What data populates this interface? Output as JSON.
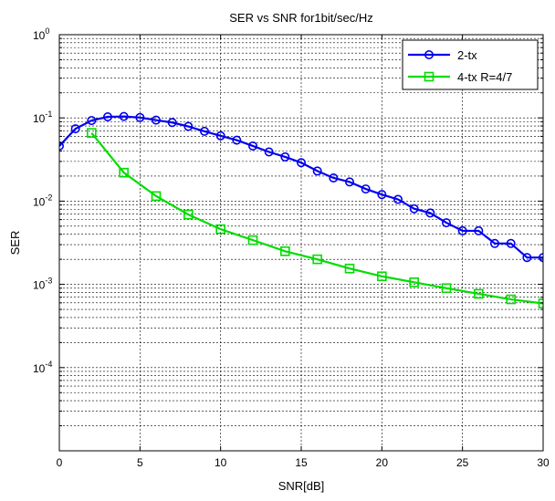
{
  "chart_data": {
    "type": "line",
    "title": "SER vs SNR for1bit/sec/Hz",
    "xlabel": "SNR[dB]",
    "ylabel": "SER",
    "xlim": [
      0,
      30
    ],
    "ylim": [
      1e-05,
      1
    ],
    "yscale": "log",
    "grid": true,
    "legend_position": "top-right",
    "x_ticks": [
      {
        "value": 0,
        "label": "0"
      },
      {
        "value": 5,
        "label": "5"
      },
      {
        "value": 10,
        "label": "10"
      },
      {
        "value": 15,
        "label": "15"
      },
      {
        "value": 20,
        "label": "20"
      },
      {
        "value": 25,
        "label": "25"
      },
      {
        "value": 30,
        "label": "30"
      }
    ],
    "y_ticks": [
      {
        "exp": 0,
        "base": "10",
        "sup": "0"
      },
      {
        "exp": -1,
        "base": "10",
        "sup": "-1"
      },
      {
        "exp": -2,
        "base": "10",
        "sup": "-2"
      },
      {
        "exp": -3,
        "base": "10",
        "sup": "-3"
      },
      {
        "exp": -4,
        "base": "10",
        "sup": "-4"
      }
    ],
    "series": [
      {
        "name": "2-tx",
        "color": "#0000ee",
        "marker": "circle",
        "x": [
          0,
          1,
          2,
          3,
          4,
          5,
          6,
          7,
          8,
          9,
          10,
          11,
          12,
          13,
          14,
          15,
          16,
          17,
          18,
          19,
          20,
          21,
          22,
          23,
          24,
          25,
          26,
          27,
          28,
          29,
          30
        ],
        "y": [
          0.046,
          0.074,
          0.093,
          0.103,
          0.104,
          0.101,
          0.094,
          0.088,
          0.079,
          0.069,
          0.061,
          0.054,
          0.046,
          0.039,
          0.034,
          0.029,
          0.023,
          0.019,
          0.017,
          0.014,
          0.012,
          0.0105,
          0.0081,
          0.0072,
          0.0055,
          0.0044,
          0.0044,
          0.0031,
          0.0031,
          0.0021,
          0.0021
        ]
      },
      {
        "name": "4-tx R=4/7",
        "color": "#00dd00",
        "marker": "square",
        "x": [
          2,
          4,
          6,
          8,
          10,
          12,
          14,
          16,
          18,
          20,
          22,
          24,
          26,
          28,
          30
        ],
        "y": [
          0.066,
          0.022,
          0.0115,
          0.0069,
          0.0046,
          0.0034,
          0.0025,
          0.002,
          0.00155,
          0.00125,
          0.00106,
          0.0009,
          0.00077,
          0.00066,
          0.00059
        ]
      }
    ]
  }
}
